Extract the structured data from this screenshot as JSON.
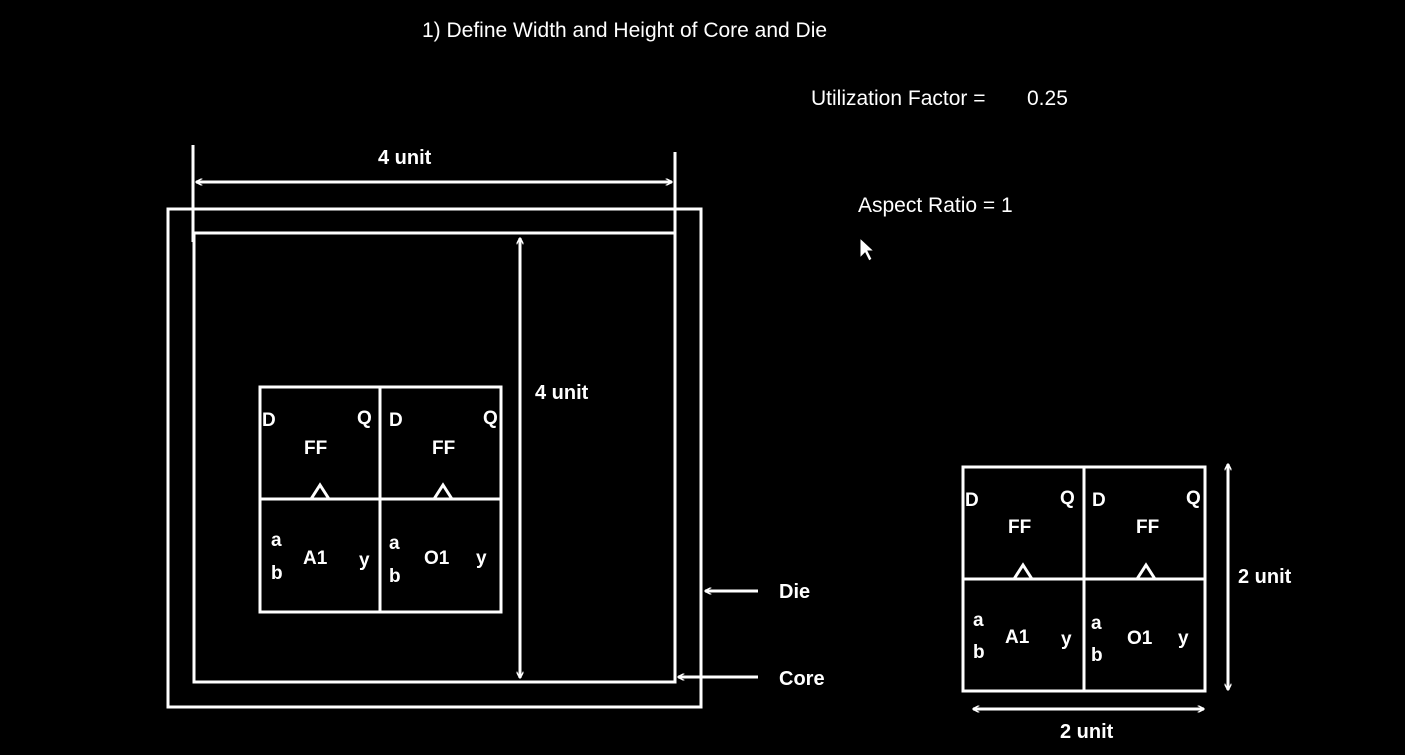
{
  "title": "1) Define Width and Height of Core and Die",
  "utilization": {
    "label": "Utilization Factor =",
    "value": "0.25"
  },
  "aspect_ratio": {
    "text": "Aspect Ratio = 1"
  },
  "core_width_label": "4 unit",
  "core_height_label": "4 unit",
  "die_label": "Die",
  "core_label": "Core",
  "cells": {
    "ff_pins": {
      "d": "D",
      "q": "Q",
      "name": "FF"
    },
    "and_gate": {
      "a": "a",
      "b": "b",
      "name": "A1",
      "y": "y"
    },
    "or_gate": {
      "a": "a",
      "b": "b",
      "name": "O1",
      "y": "y"
    }
  },
  "small_block": {
    "width_label": "2 unit",
    "height_label": "2 unit"
  }
}
